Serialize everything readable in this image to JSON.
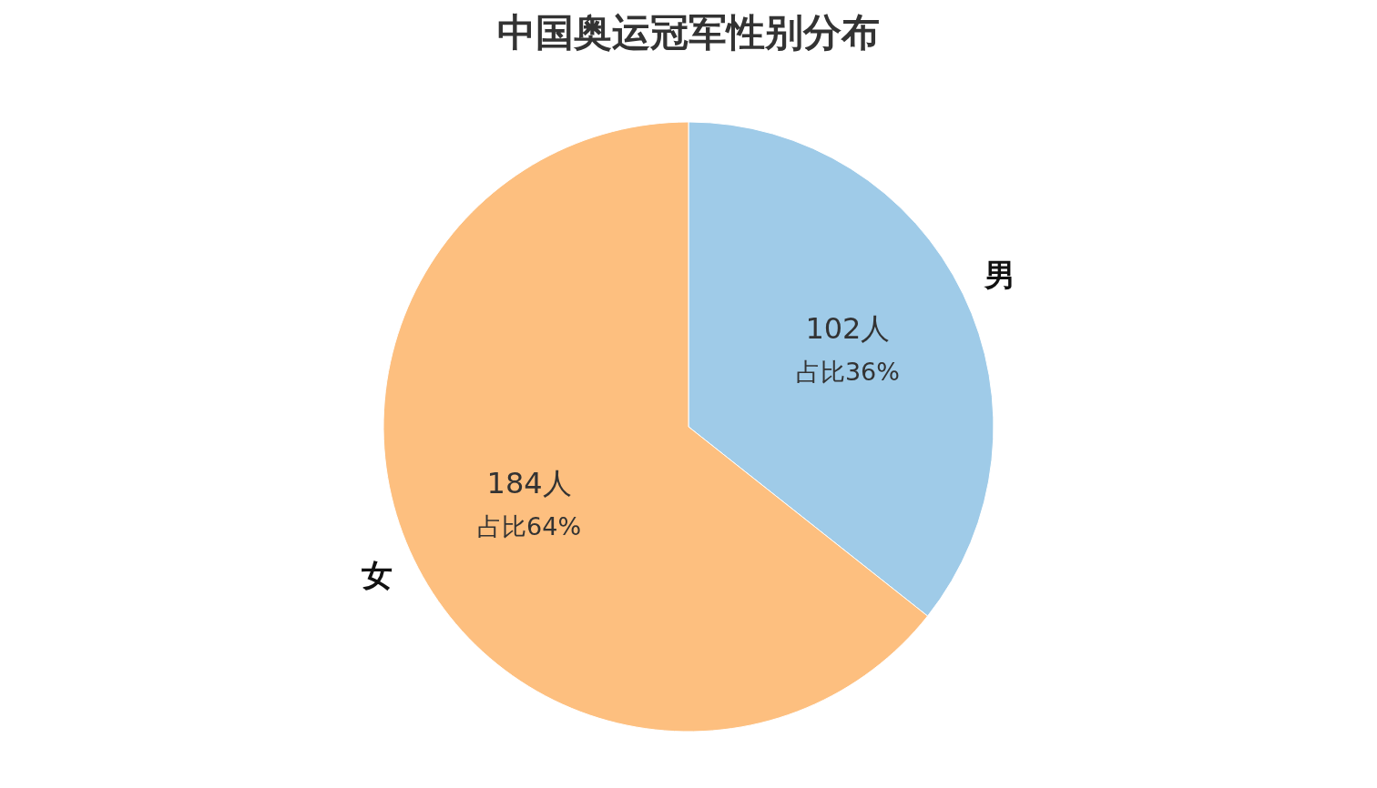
{
  "chart_data": {
    "type": "pie",
    "title": "中国奥运冠军性别分布",
    "categories": [
      "男",
      "女"
    ],
    "values": [
      102,
      184
    ],
    "colors": [
      "#9fcbe8",
      "#fdbf7f"
    ],
    "value_labels": [
      "102人",
      "184人"
    ],
    "annotations": [
      "占比36%",
      "占比64%"
    ],
    "legend": false
  }
}
